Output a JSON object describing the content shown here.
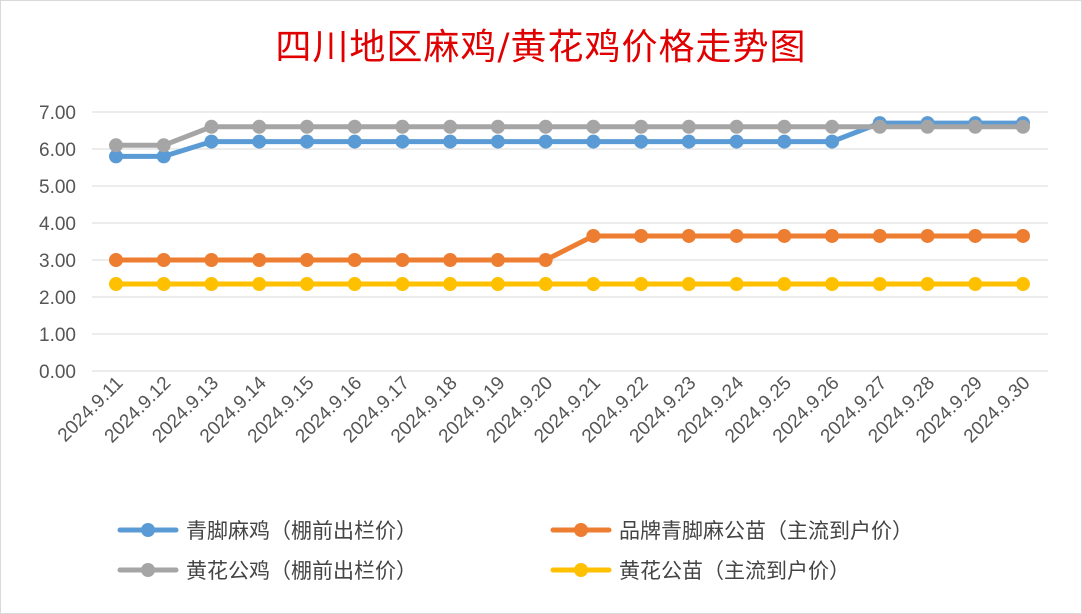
{
  "chart_data": {
    "type": "line",
    "title": "四川地区麻鸡/黄花鸡价格走势图",
    "xlabel": "",
    "ylabel": "",
    "ylim": [
      0,
      7
    ],
    "yticks": [
      "0.00",
      "1.00",
      "2.00",
      "3.00",
      "4.00",
      "5.00",
      "6.00",
      "7.00"
    ],
    "grid": true,
    "legend_position": "bottom",
    "categories": [
      "2024.9.11",
      "2024.9.12",
      "2024.9.13",
      "2024.9.14",
      "2024.9.15",
      "2024.9.16",
      "2024.9.17",
      "2024.9.18",
      "2024.9.19",
      "2024.9.20",
      "2024.9.21",
      "2024.9.22",
      "2024.9.23",
      "2024.9.24",
      "2024.9.25",
      "2024.9.26",
      "2024.9.27",
      "2024.9.28",
      "2024.9.29",
      "2024.9.30"
    ],
    "series": [
      {
        "name": "青脚麻鸡（棚前出栏价）",
        "color": "#5b9bd5",
        "values": [
          5.8,
          5.8,
          6.2,
          6.2,
          6.2,
          6.2,
          6.2,
          6.2,
          6.2,
          6.2,
          6.2,
          6.2,
          6.2,
          6.2,
          6.2,
          6.2,
          6.7,
          6.7,
          6.7,
          6.7
        ]
      },
      {
        "name": "品牌青脚麻公苗（主流到户价）",
        "color": "#ed7d31",
        "values": [
          3.0,
          3.0,
          3.0,
          3.0,
          3.0,
          3.0,
          3.0,
          3.0,
          3.0,
          3.0,
          3.65,
          3.65,
          3.65,
          3.65,
          3.65,
          3.65,
          3.65,
          3.65,
          3.65,
          3.65
        ]
      },
      {
        "name": "黄花公鸡（棚前出栏价）",
        "color": "#a5a5a5",
        "values": [
          6.1,
          6.1,
          6.6,
          6.6,
          6.6,
          6.6,
          6.6,
          6.6,
          6.6,
          6.6,
          6.6,
          6.6,
          6.6,
          6.6,
          6.6,
          6.6,
          6.6,
          6.6,
          6.6,
          6.6
        ]
      },
      {
        "name": "黄花公苗（主流到户价）",
        "color": "#ffc000",
        "values": [
          2.35,
          2.35,
          2.35,
          2.35,
          2.35,
          2.35,
          2.35,
          2.35,
          2.35,
          2.35,
          2.35,
          2.35,
          2.35,
          2.35,
          2.35,
          2.35,
          2.35,
          2.35,
          2.35,
          2.35
        ]
      }
    ],
    "legend_order": [
      0,
      1,
      2,
      3
    ],
    "draw_order": [
      1,
      3,
      0,
      2
    ]
  }
}
